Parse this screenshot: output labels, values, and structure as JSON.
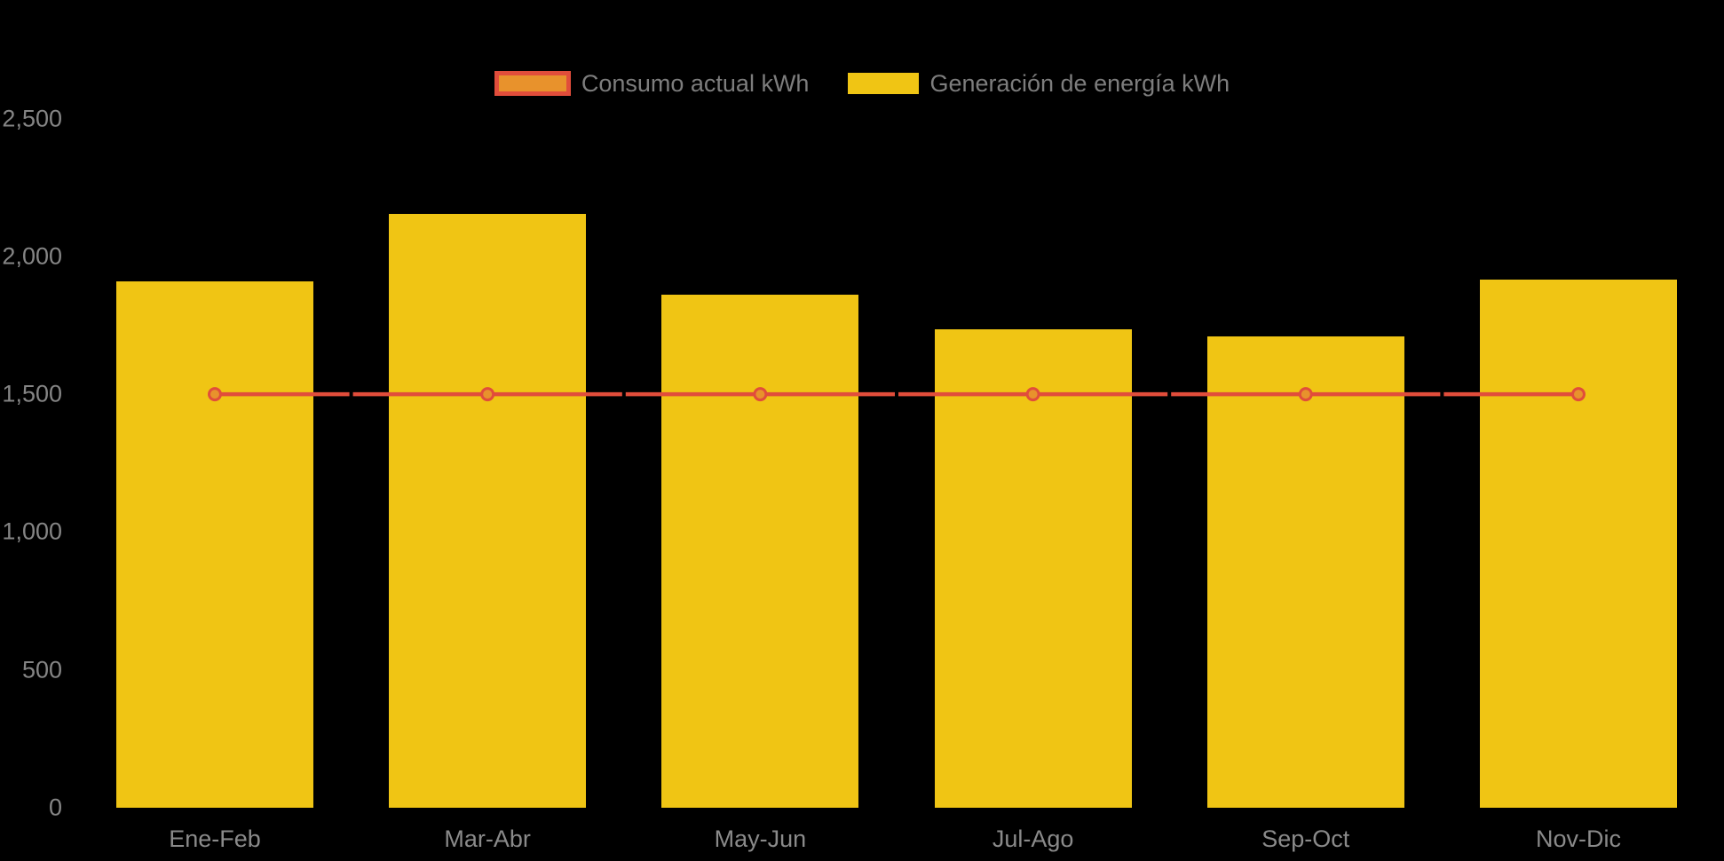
{
  "background_color": "#000000",
  "legend": {
    "items": [
      {
        "label": "Consumo actual kWh"
      },
      {
        "label": "Generación de energía kWh"
      }
    ]
  },
  "chart_data": {
    "type": "bar",
    "title": "",
    "xlabel": "",
    "ylabel": "",
    "categories": [
      "Ene-Feb",
      "Mar-Abr",
      "May-Jun",
      "Jul-Ago",
      "Sep-Oct",
      "Nov-Dic"
    ],
    "series": [
      {
        "name": "Consumo actual kWh",
        "type": "line",
        "color": "#E14D3B",
        "marker_fill": "#E8922C",
        "marker_stroke": "#E14D3B",
        "values": [
          1500,
          1500,
          1500,
          1500,
          1500,
          1500
        ]
      },
      {
        "name": "Generación de energía kWh",
        "type": "bar",
        "color": "#F0C514",
        "values": [
          1910,
          2155,
          1860,
          1735,
          1710,
          1915
        ]
      }
    ],
    "ylim": [
      0,
      2500
    ],
    "y_ticks": [
      0,
      500,
      1000,
      1500,
      2000,
      2500
    ],
    "y_tick_labels": [
      "0",
      "500",
      "1,000",
      "1,500",
      "2,000",
      "2,500"
    ],
    "grid": false,
    "legend_position": "top-center",
    "axis_text_color": "#8a8a8a"
  }
}
